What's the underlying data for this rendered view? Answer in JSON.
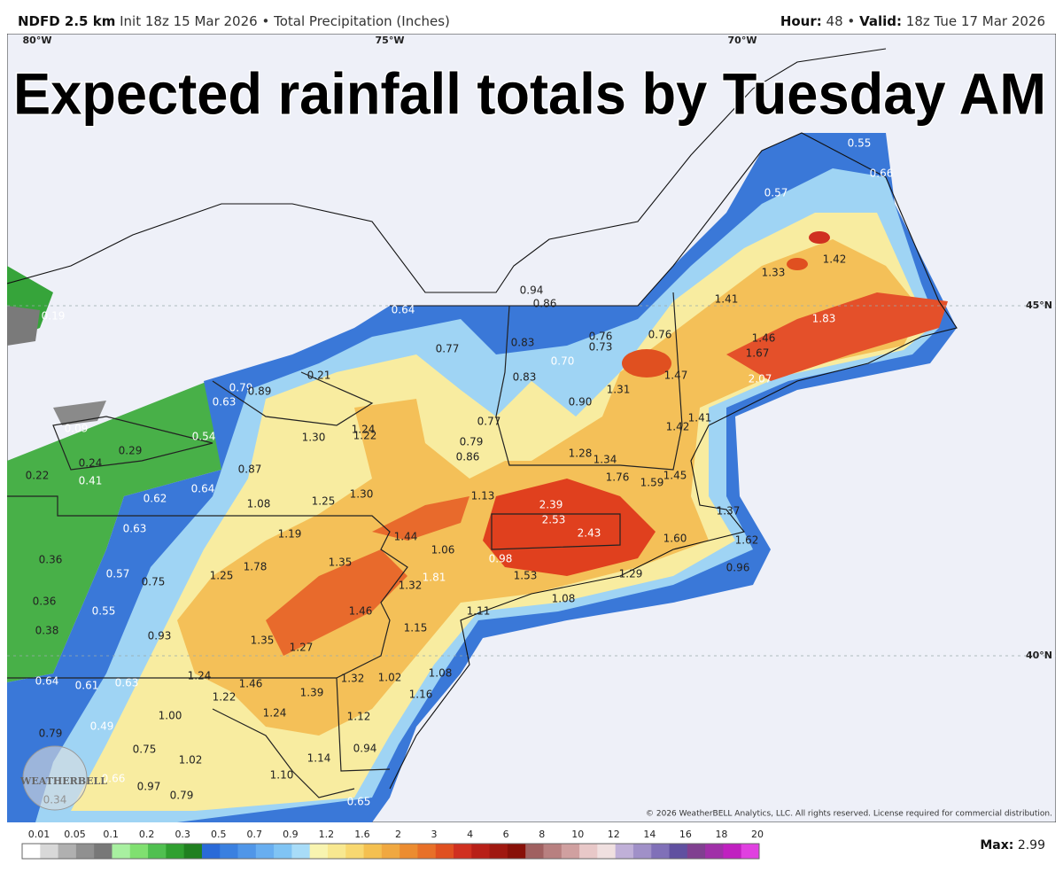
{
  "header": {
    "model": "NDFD 2.5 km",
    "init": "Init 18z 15 Mar 2026",
    "separator": "•",
    "product": "Total Precipitation (Inches)",
    "hour_label": "Hour:",
    "hour": "48",
    "valid_label": "Valid:",
    "valid": "18z Tue 17 Mar 2026"
  },
  "title": "Expected rainfall totals by Tuesday AM",
  "map": {
    "longitudes": [
      "80°W",
      "75°W",
      "70°W"
    ],
    "latitudes": [
      "45°N",
      "40°N"
    ],
    "point_values": [
      "0.94",
      "0.86",
      "0.64",
      "0.77",
      "0.83",
      "0.76",
      "0.73",
      "0.76",
      "0.70",
      "0.83",
      "0.90",
      "1.31",
      "1.47",
      "1.41",
      "1.33",
      "1.42",
      "0.57",
      "0.66",
      "1.83",
      "1.46",
      "1.67",
      "2.07",
      "1.42",
      "1.41",
      "1.28",
      "1.34",
      "1.76",
      "1.59",
      "1.45",
      "1.37",
      "1.62",
      "0.96",
      "1.60",
      "2.43",
      "2.53",
      "2.39",
      "1.13",
      "0.77",
      "0.79",
      "0.86",
      "0.21",
      "0.79",
      "0.89",
      "0.63",
      "1.30",
      "1.24",
      "1.22",
      "0.54",
      "0.29",
      "0.24",
      "0.22",
      "0.41",
      "0.87",
      "0.64",
      "0.62",
      "1.08",
      "1.25",
      "1.30",
      "1.19",
      "1.44",
      "1.06",
      "0.98",
      "1.53",
      "1.29",
      "1.08",
      "1.11",
      "1.81",
      "1.32",
      "1.35",
      "1.78",
      "1.25",
      "0.57",
      "0.75",
      "0.36",
      "0.36",
      "0.55",
      "0.38",
      "0.93",
      "1.46",
      "1.15",
      "1.35",
      "1.27",
      "0.63",
      "1.24",
      "1.46",
      "1.22",
      "1.32",
      "1.02",
      "1.08",
      "1.16",
      "1.39",
      "1.24",
      "1.12",
      "0.64",
      "0.61",
      "0.63",
      "1.00",
      "0.49",
      "0.79",
      "0.75",
      "1.02",
      "0.94",
      "1.14",
      "1.10",
      "0.66",
      "0.97",
      "0.79",
      "0.34",
      "0.65",
      "0.19",
      "0.09",
      "0.55"
    ]
  },
  "legend": {
    "ticks": [
      0.01,
      0.05,
      0.1,
      0.2,
      0.3,
      0.5,
      0.7,
      0.9,
      1.2,
      1.6,
      2,
      3,
      4,
      6,
      8,
      10,
      12,
      14,
      16,
      18,
      20
    ],
    "colors": [
      "#ffffff",
      "#d8d8d8",
      "#b0b0b0",
      "#909090",
      "#787878",
      "#a8f0a0",
      "#80e070",
      "#50c050",
      "#30a030",
      "#208020",
      "#2a6ad8",
      "#3a80e0",
      "#5096e8",
      "#68aef0",
      "#80c4f4",
      "#a8dcf8",
      "#f8f4b0",
      "#f8e890",
      "#f8d870",
      "#f4c050",
      "#f0a840",
      "#ec8c30",
      "#e87028",
      "#e05020",
      "#d03020",
      "#b82018",
      "#a01810",
      "#881008",
      "#a06060",
      "#b88080",
      "#d0a0a0",
      "#e8c8c8",
      "#f0e0e0",
      "#c0b0d8",
      "#a090c8",
      "#8070b8",
      "#6050a0",
      "#804090",
      "#a030a8",
      "#c020c0",
      "#e040e0"
    ]
  },
  "max": {
    "label": "Max:",
    "value": "2.99"
  },
  "copyright": "© 2026 WeatherBELL Analytics, LLC. All rights reserved. License required for commercial distribution.",
  "logo": "WEATHERBELL"
}
